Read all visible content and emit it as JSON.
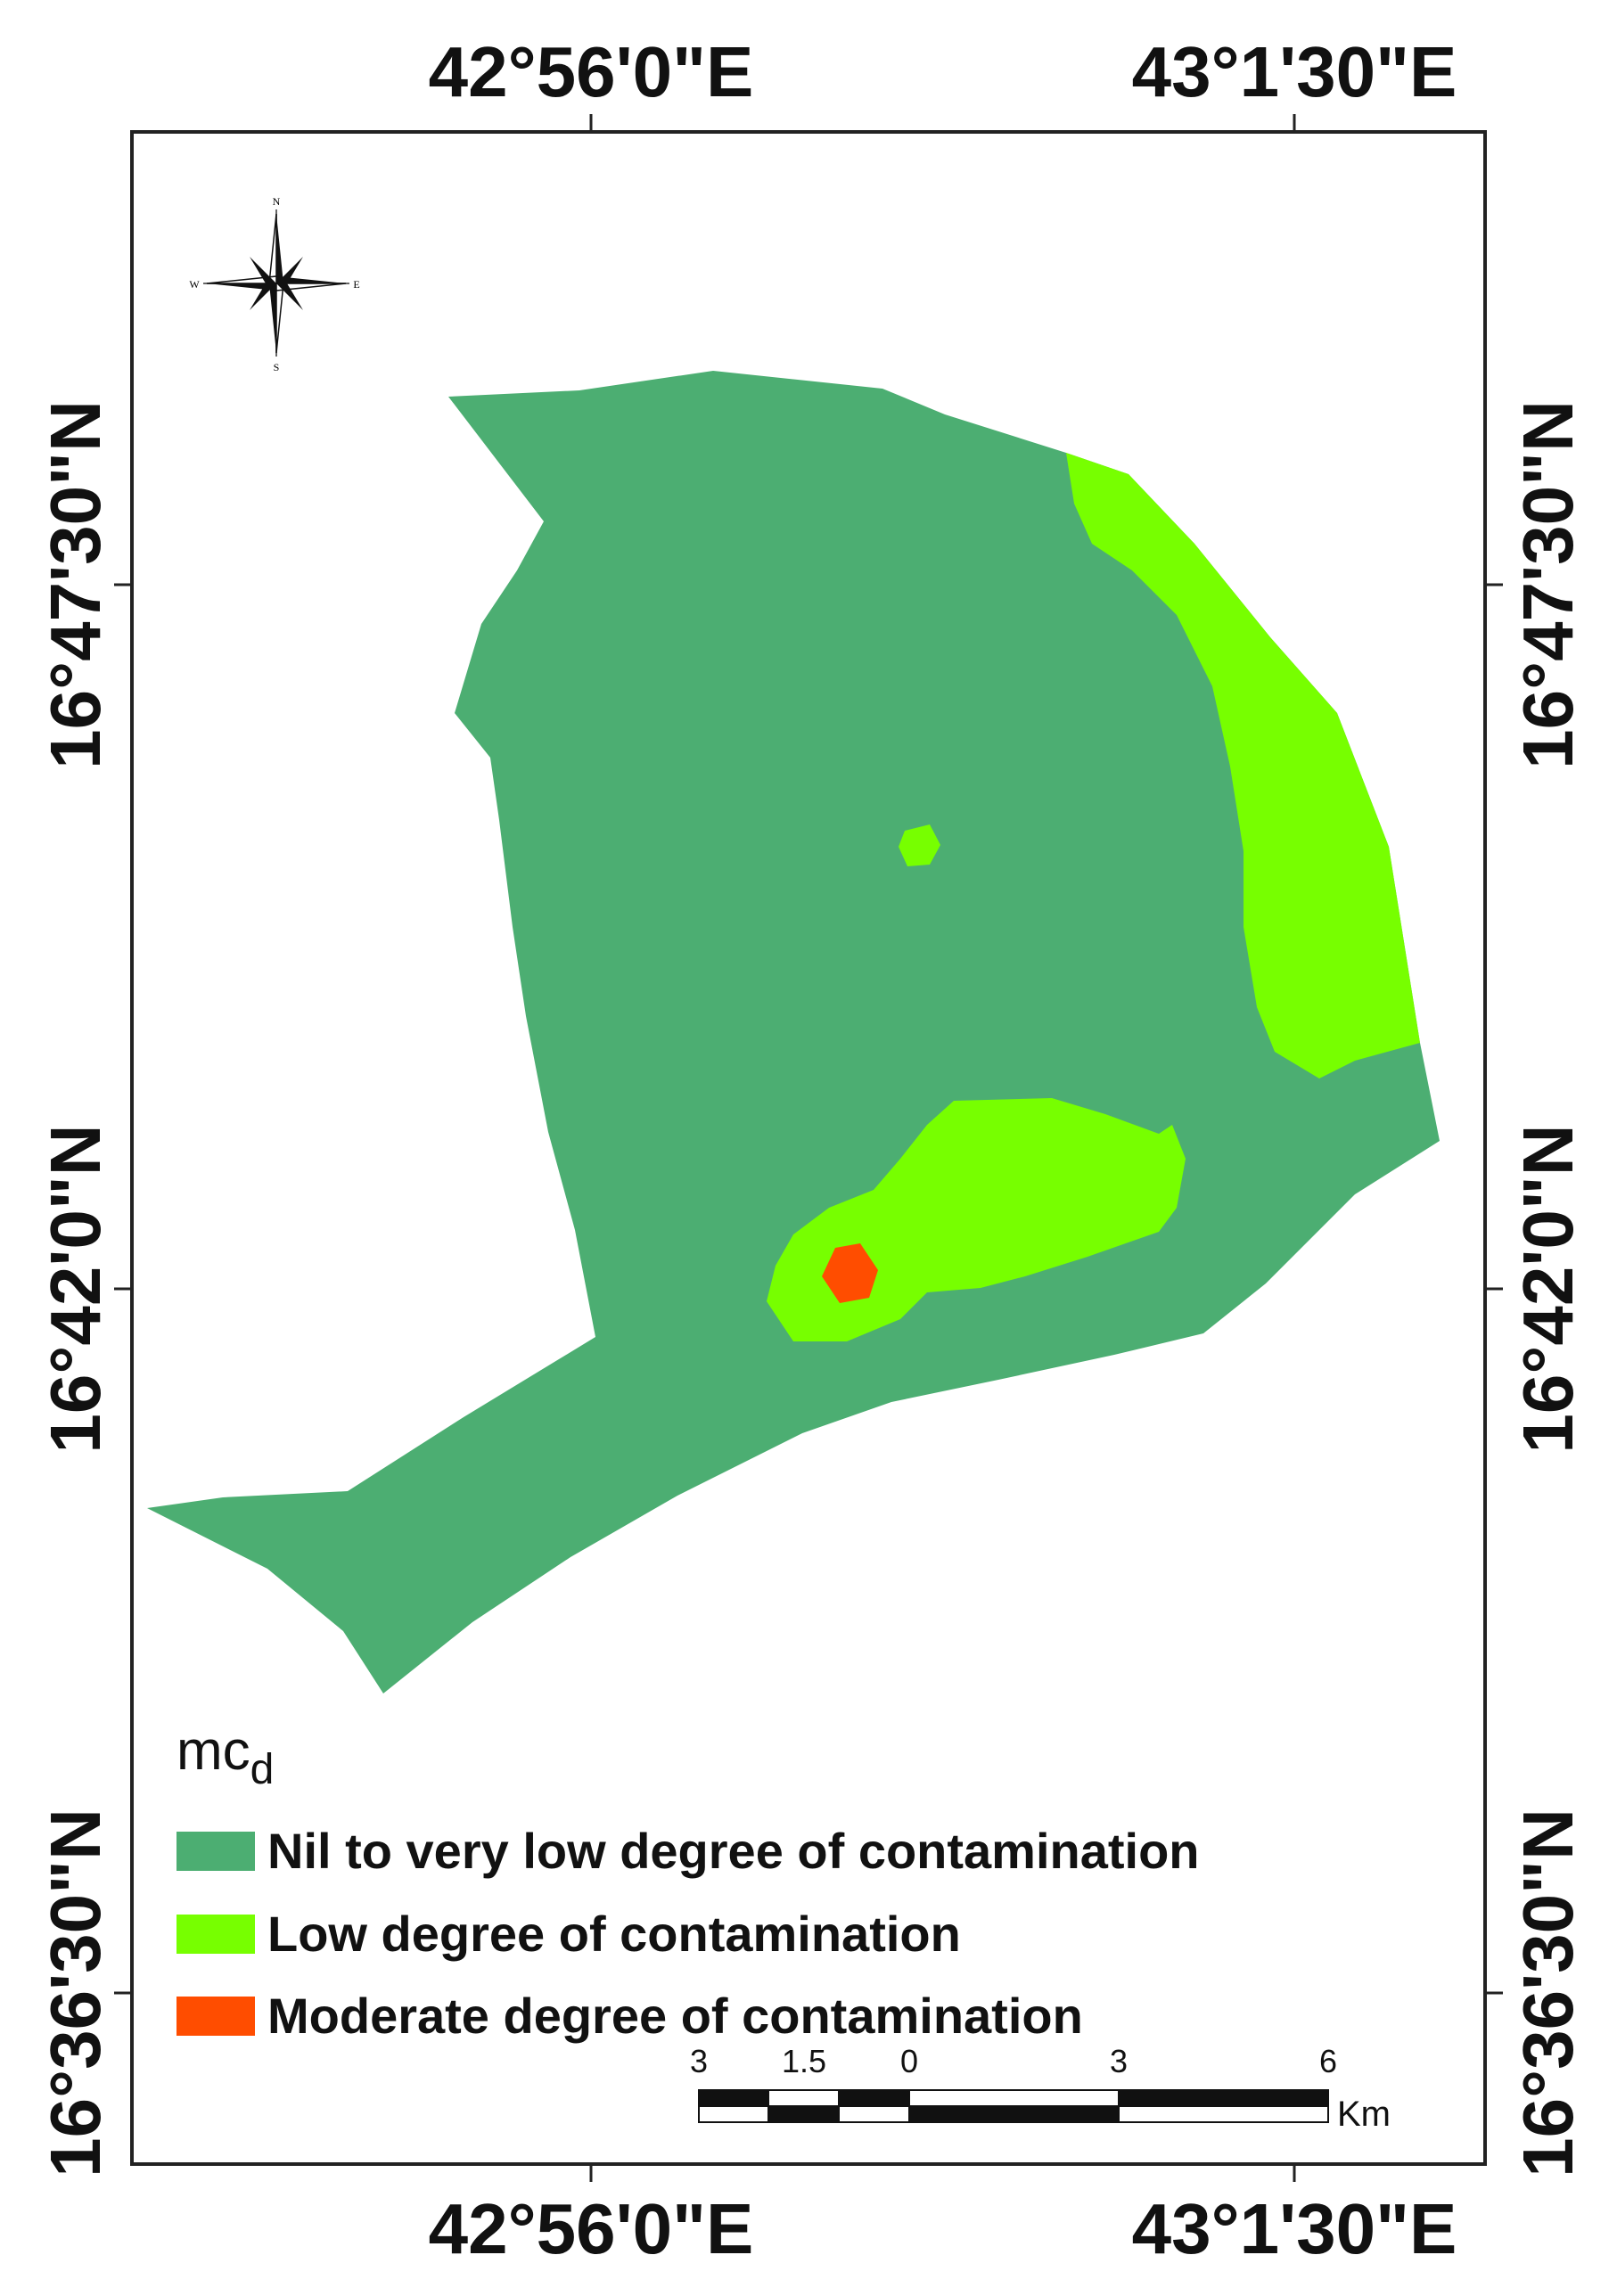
{
  "coordinates": {
    "top_left_lon": "42°56'0\"E",
    "top_right_lon": "43°1'30\"E",
    "bottom_left_lon": "42°56'0\"E",
    "bottom_right_lon": "43°1'30\"E",
    "left_lat_upper": "16°47'30\"N",
    "left_lat_middle": "16°42'0\"N",
    "left_lat_lower": "16°36'30\"N",
    "right_lat_upper": "16°47'30\"N",
    "right_lat_middle": "16°42'0\"N",
    "right_lat_lower": "16°36'30\"N"
  },
  "north_arrow": {
    "n": "N",
    "s": "S",
    "e": "E",
    "w": "W"
  },
  "legend": {
    "title_main": "mc",
    "title_sub": "d",
    "classes": [
      {
        "label": "Nil to very low degree of contamination",
        "color": "#4cae72"
      },
      {
        "label": "Low degree of contamination",
        "color": "#77ff00"
      },
      {
        "label": "Moderate degree of contamination",
        "color": "#ff4d00"
      }
    ]
  },
  "scale_bar": {
    "ticks": [
      "3",
      "1.5",
      "0",
      "3",
      "6"
    ],
    "unit": "Km"
  }
}
